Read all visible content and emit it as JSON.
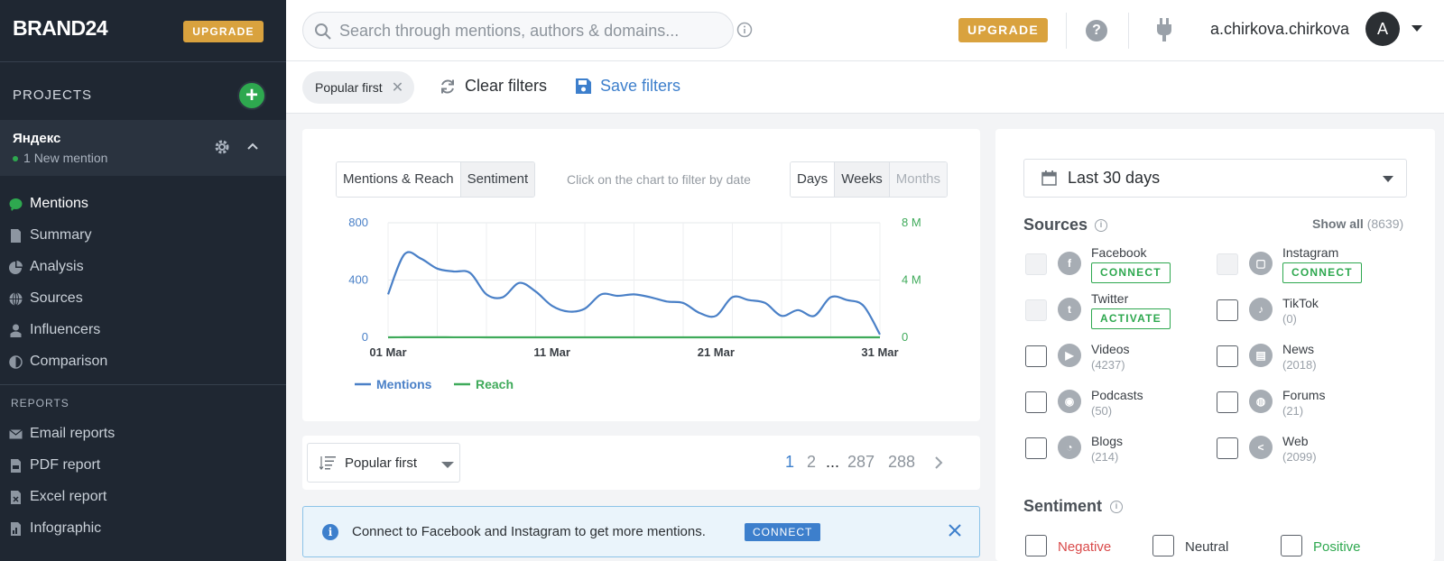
{
  "sidebar": {
    "brand": "BRAND24",
    "upgrade": "UPGRADE",
    "projects_label": "PROJECTS",
    "project": {
      "name": "Яндекс",
      "mention_count": "1",
      "mention_text": "New mention"
    },
    "nav": [
      {
        "label": "Mentions",
        "icon": "chat-icon",
        "active": true
      },
      {
        "label": "Summary",
        "icon": "document-icon"
      },
      {
        "label": "Analysis",
        "icon": "pie-chart-icon"
      },
      {
        "label": "Sources",
        "icon": "globe-icon"
      },
      {
        "label": "Influencers",
        "icon": "person-icon"
      },
      {
        "label": "Comparison",
        "icon": "half-circle-icon"
      }
    ],
    "reports_label": "REPORTS",
    "reports": [
      {
        "label": "Email reports",
        "icon": "envelope-icon"
      },
      {
        "label": "PDF report",
        "icon": "pdf-icon"
      },
      {
        "label": "Excel report",
        "icon": "excel-icon"
      },
      {
        "label": "Infographic",
        "icon": "infographic-icon"
      }
    ]
  },
  "topbar": {
    "search_placeholder": "Search through mentions, authors & domains...",
    "upgrade": "UPGRADE",
    "username": "a.chirkova.chirkova",
    "avatar_letter": "A"
  },
  "filters": {
    "chip": "Popular first",
    "clear": "Clear filters",
    "save": "Save filters"
  },
  "chart_panel": {
    "tabs": [
      "Mentions & Reach",
      "Sentiment"
    ],
    "hint": "Click on the chart to filter by date",
    "periods": [
      "Days",
      "Weeks",
      "Months"
    ],
    "left_ticks": [
      "800",
      "400",
      "0"
    ],
    "right_ticks": [
      "8 M",
      "4 M",
      "0"
    ],
    "x_ticks": [
      "01 Mar",
      "11 Mar",
      "21 Mar",
      "31 Mar"
    ]
  },
  "chart_data": {
    "type": "line",
    "x": [
      "01 Mar",
      "02 Mar",
      "03 Mar",
      "04 Mar",
      "05 Mar",
      "06 Mar",
      "07 Mar",
      "08 Mar",
      "09 Mar",
      "10 Mar",
      "11 Mar",
      "12 Mar",
      "13 Mar",
      "14 Mar",
      "15 Mar",
      "16 Mar",
      "17 Mar",
      "18 Mar",
      "19 Mar",
      "20 Mar",
      "21 Mar",
      "22 Mar",
      "23 Mar",
      "24 Mar",
      "25 Mar",
      "26 Mar",
      "27 Mar",
      "28 Mar",
      "29 Mar",
      "30 Mar",
      "31 Mar"
    ],
    "series": [
      {
        "name": "Mentions",
        "axis": "left",
        "color": "#4a80c7",
        "values": [
          300,
          580,
          550,
          480,
          460,
          450,
          300,
          280,
          380,
          320,
          220,
          180,
          200,
          300,
          290,
          300,
          280,
          250,
          240,
          170,
          150,
          280,
          260,
          240,
          150,
          190,
          150,
          280,
          260,
          220,
          20
        ]
      },
      {
        "name": "Reach",
        "axis": "right",
        "color": "#3faa5a",
        "values": [
          1200,
          6500,
          6800,
          7100,
          5200,
          4700,
          1800,
          1500,
          1300,
          1600,
          900,
          900,
          1000,
          1300,
          1300,
          1300,
          1200,
          500,
          400,
          700,
          700,
          1500,
          1500,
          1700,
          700,
          1000,
          1600,
          2000,
          1800,
          2100,
          100
        ]
      }
    ],
    "ylim_left": [
      0,
      800
    ],
    "ylim_right": [
      0,
      8000000
    ],
    "grid": true,
    "legend": "bottom-left"
  },
  "sort": {
    "label": "Popular first",
    "pages": [
      "1",
      "2",
      "...",
      "287",
      "288"
    ]
  },
  "notice": {
    "text": "Connect to Facebook and Instagram to get more mentions.",
    "button": "CONNECT"
  },
  "right_panel": {
    "date_range": "Last 30 days",
    "sources_title": "Sources",
    "show_all": "Show all",
    "show_all_count": "(8639)",
    "sources": [
      {
        "name": "Facebook",
        "button": "CONNECT",
        "icon": "facebook-icon"
      },
      {
        "name": "Instagram",
        "button": "CONNECT",
        "icon": "instagram-icon"
      },
      {
        "name": "Twitter",
        "button": "ACTIVATE",
        "icon": "twitter-icon"
      },
      {
        "name": "TikTok",
        "count": "(0)",
        "icon": "tiktok-icon"
      },
      {
        "name": "Videos",
        "count": "(4237)",
        "icon": "play-icon"
      },
      {
        "name": "News",
        "count": "(2018)",
        "icon": "newspaper-icon"
      },
      {
        "name": "Podcasts",
        "count": "(50)",
        "icon": "podcast-icon"
      },
      {
        "name": "Forums",
        "count": "(21)",
        "icon": "forum-icon"
      },
      {
        "name": "Blogs",
        "count": "(214)",
        "icon": "rss-icon"
      },
      {
        "name": "Web",
        "count": "(2099)",
        "icon": "share-icon"
      }
    ],
    "sentiment_title": "Sentiment",
    "sentiment": [
      {
        "label": "Negative",
        "color": "#d94a4a"
      },
      {
        "label": "Neutral",
        "color": "#3a3f45"
      },
      {
        "label": "Positive",
        "color": "#2ea84f"
      }
    ]
  }
}
